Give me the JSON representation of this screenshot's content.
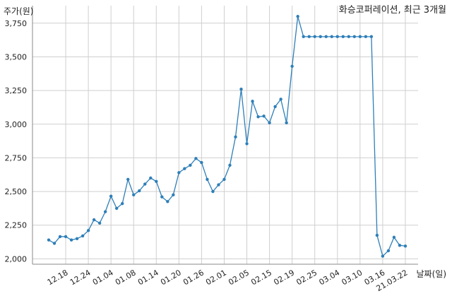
{
  "chart_data": {
    "type": "line",
    "title": "화승코퍼레이션, 최근 3개월",
    "xlabel": "날짜(일)",
    "ylabel": "주가(원)",
    "ylim": [
      1960,
      3880
    ],
    "yticks": [
      2000,
      2250,
      2500,
      2750,
      3000,
      3250,
      3500,
      3750
    ],
    "ytick_labels": [
      "2,000",
      "2,250",
      "2,500",
      "2,750",
      "3,000",
      "3,250",
      "3,500",
      "3,750"
    ],
    "xticks": [
      {
        "label": "12.18",
        "index": 3
      },
      {
        "label": "12.24",
        "index": 7
      },
      {
        "label": "01.04",
        "index": 11
      },
      {
        "label": "01.08",
        "index": 15
      },
      {
        "label": "01.14",
        "index": 19
      },
      {
        "label": "01.20",
        "index": 23
      },
      {
        "label": "01.26",
        "index": 27
      },
      {
        "label": "02.01",
        "index": 31
      },
      {
        "label": "02.05",
        "index": 35
      },
      {
        "label": "02.15",
        "index": 39
      },
      {
        "label": "02.19",
        "index": 43
      },
      {
        "label": "02.25",
        "index": 47
      },
      {
        "label": "03.04",
        "index": 51
      },
      {
        "label": "03.10",
        "index": 55
      },
      {
        "label": "03.16",
        "index": 59
      },
      {
        "label": "21.03.22",
        "index": 63
      }
    ],
    "grid": true,
    "color": "#2e7fb8",
    "series": [
      {
        "values": [
          2140,
          2115,
          2165,
          2165,
          2140,
          2150,
          2170,
          2210,
          2290,
          2265,
          2350,
          2465,
          2375,
          2410,
          2590,
          2475,
          2505,
          2555,
          2600,
          2575,
          2460,
          2425,
          2475,
          2640,
          2670,
          2695,
          2745,
          2715,
          2590,
          2500,
          2550,
          2590,
          2695,
          2905,
          3260,
          2855,
          3170,
          3055,
          3060,
          3010,
          3130,
          3185,
          3010,
          3430,
          3800,
          3650,
          3650,
          3650,
          3650,
          3650,
          3650,
          3650,
          3650,
          3650,
          3650,
          3650,
          3650,
          3650,
          2175,
          2020,
          2060,
          2160,
          2100,
          2095
        ]
      }
    ]
  }
}
